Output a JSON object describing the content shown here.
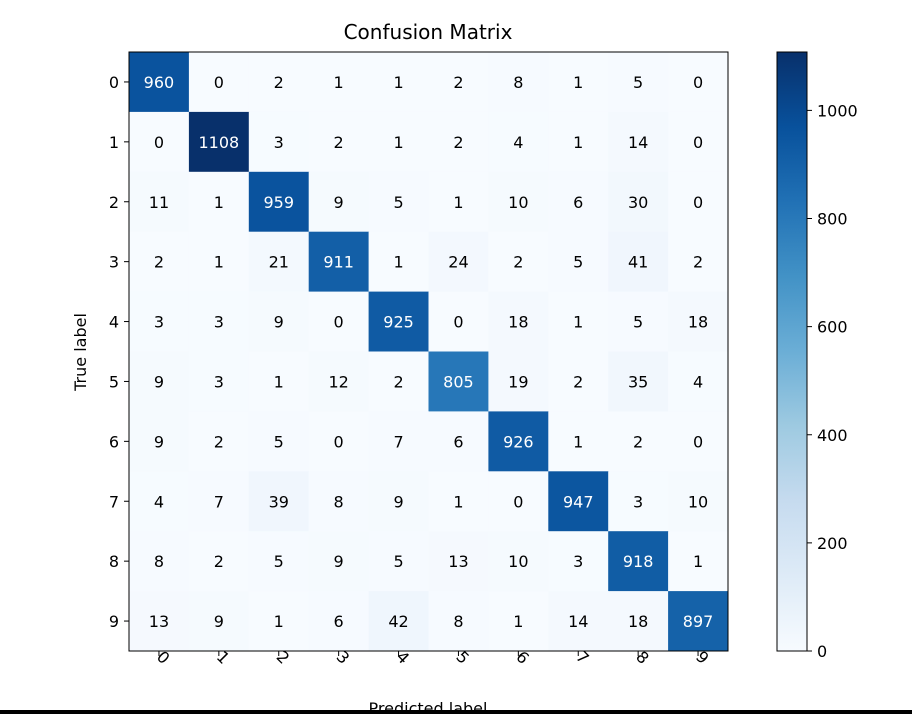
{
  "chart_data": {
    "type": "heatmap",
    "title": "Confusion Matrix",
    "xlabel": "Predicted label",
    "ylabel": "True label",
    "x_categories": [
      "0",
      "1",
      "2",
      "3",
      "4",
      "5",
      "6",
      "7",
      "8",
      "9"
    ],
    "y_categories": [
      "0",
      "1",
      "2",
      "3",
      "4",
      "5",
      "6",
      "7",
      "8",
      "9"
    ],
    "matrix": [
      [
        960,
        0,
        2,
        1,
        1,
        2,
        8,
        1,
        5,
        0
      ],
      [
        0,
        1108,
        3,
        2,
        1,
        2,
        4,
        1,
        14,
        0
      ],
      [
        11,
        1,
        959,
        9,
        5,
        1,
        10,
        6,
        30,
        0
      ],
      [
        2,
        1,
        21,
        911,
        1,
        24,
        2,
        5,
        41,
        2
      ],
      [
        3,
        3,
        9,
        0,
        925,
        0,
        18,
        1,
        5,
        18
      ],
      [
        9,
        3,
        1,
        12,
        2,
        805,
        19,
        2,
        35,
        4
      ],
      [
        9,
        2,
        5,
        0,
        7,
        6,
        926,
        1,
        2,
        0
      ],
      [
        4,
        7,
        39,
        8,
        9,
        1,
        0,
        947,
        3,
        10
      ],
      [
        8,
        2,
        5,
        9,
        5,
        13,
        10,
        3,
        918,
        1
      ],
      [
        13,
        9,
        1,
        6,
        42,
        8,
        1,
        14,
        18,
        897
      ]
    ],
    "colormap": "Blues",
    "colormap_stops": [
      "#f7fbff",
      "#deebf7",
      "#c6dbef",
      "#9ecae1",
      "#6baed6",
      "#4292c6",
      "#2171b5",
      "#08519c",
      "#08306b"
    ],
    "color_range": [
      0,
      1108
    ],
    "colorbar_ticks": [
      0,
      200,
      400,
      600,
      800,
      1000
    ],
    "text_color_light": "#ffffff",
    "text_color_dark": "#000000",
    "x_tick_rotation": "45",
    "grid": false
  }
}
